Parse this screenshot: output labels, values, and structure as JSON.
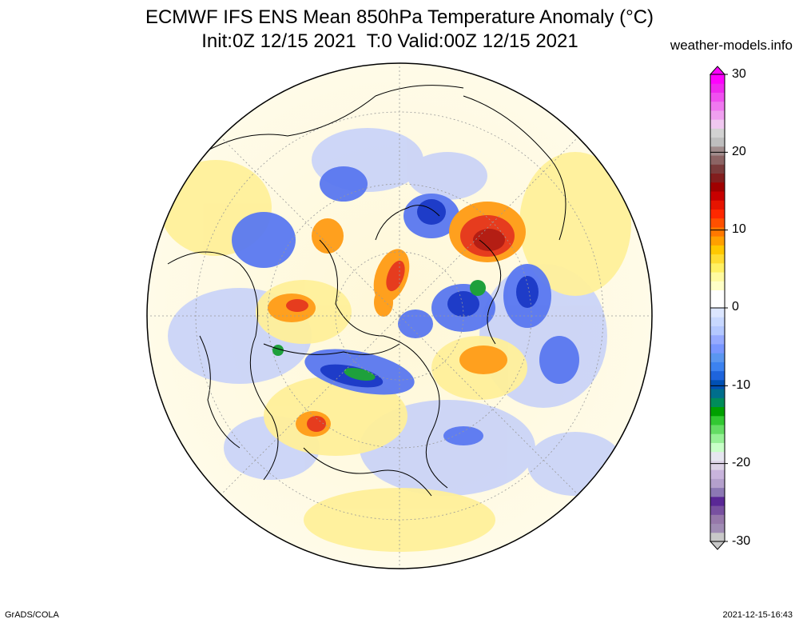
{
  "title": {
    "line1": "ECMWF IFS ENS Mean 850hPa Temperature Anomaly (°C)",
    "line2": "Init:0Z 12/15 2021  T:0 Valid:00Z 12/15 2021"
  },
  "credit": "weather-models.info",
  "footer": {
    "left": "GrADS/COLA",
    "right": "2021-12-15-16:43"
  },
  "colorbar": {
    "labels": [
      "30",
      "20",
      "10",
      "0",
      "-10",
      "-20",
      "-30"
    ],
    "min": -30,
    "max": 30,
    "colors": [
      "#c8c8c8",
      "#a08cb4",
      "#9678aa",
      "#7850a0",
      "#5a2896",
      "#8c78b4",
      "#b4a0cc",
      "#c8b4dc",
      "#dcd2e6",
      "#e6e6f0",
      "#c8ffc8",
      "#96f096",
      "#64dc64",
      "#32c832",
      "#00a000",
      "#008c5a",
      "#006e8c",
      "#0050b4",
      "#1e64dc",
      "#3c82f0",
      "#5a96f0",
      "#7896ff",
      "#96aaff",
      "#b4c8ff",
      "#c8d8ff",
      "#dce6ff",
      "#ffffff",
      "#ffffff",
      "#ffffc8",
      "#fffaa0",
      "#fff064",
      "#ffdc32",
      "#ffc800",
      "#ffa000",
      "#ff7800",
      "#ff5000",
      "#ff2800",
      "#e61400",
      "#c80000",
      "#a00000",
      "#821e1e",
      "#7a3c3c",
      "#8c6464",
      "#a08c8c",
      "#bebebe",
      "#d2d2d2",
      "#f0c8f0",
      "#f0a0f0",
      "#f078f0",
      "#f050f0",
      "#f028f0",
      "#ff00ff"
    ]
  },
  "map": {
    "projection": "north-polar-stereographic",
    "palette_key": [
      "cold-strong",
      "cold",
      "neutral",
      "warm",
      "warm-strong"
    ],
    "colors": {
      "cold_strong": "#1e3cdc",
      "cold": "#8ca0f0",
      "neutral": "#fffae6",
      "warm": "#ffc832",
      "warm_strong": "#e63c1e",
      "green": "#28b43c"
    }
  }
}
